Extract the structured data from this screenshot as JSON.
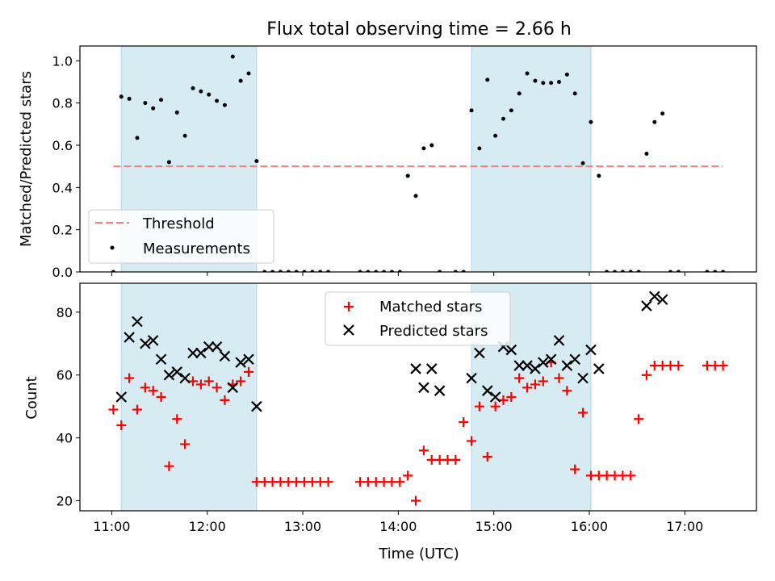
{
  "figure": {
    "title": "Flux total observing time = 2.66 h",
    "xlabel": "Time (UTC)"
  },
  "chart_data": [
    {
      "type": "scatter",
      "ylabel": "Matched/Predicted stars",
      "xlim": [
        "10:40",
        "17:45"
      ],
      "ylim": [
        0,
        1.07
      ],
      "x_ticks": [
        "11:00",
        "12:00",
        "13:00",
        "14:00",
        "15:00",
        "16:00",
        "17:00"
      ],
      "y_ticks": [
        "0.0",
        "0.2",
        "0.4",
        "0.6",
        "0.8",
        "1.0"
      ],
      "shaded_intervals": [
        [
          "11:06",
          "12:31"
        ],
        [
          "14:46",
          "16:01"
        ]
      ],
      "threshold": {
        "name": "Threshold",
        "value": 0.5,
        "x_range": [
          "11:01",
          "17:24"
        ],
        "color": "#f08080",
        "style": "dashed"
      },
      "legend": {
        "placement": "lower-left"
      },
      "series": [
        {
          "name": "Measurements",
          "color": "#000000",
          "x": [
            "11:01",
            "11:06",
            "11:11",
            "11:16",
            "11:21",
            "11:26",
            "11:31",
            "11:36",
            "11:41",
            "11:46",
            "11:51",
            "11:56",
            "12:01",
            "12:06",
            "12:11",
            "12:16",
            "12:21",
            "12:26",
            "12:31",
            "12:36",
            "12:41",
            "12:46",
            "12:51",
            "12:56",
            "13:01",
            "13:06",
            "13:11",
            "13:16",
            "13:36",
            "13:41",
            "13:46",
            "13:51",
            "13:56",
            "14:01",
            "14:06",
            "14:11",
            "14:16",
            "14:21",
            "14:26",
            "14:36",
            "14:41",
            "14:46",
            "14:51",
            "14:56",
            "15:01",
            "15:06",
            "15:11",
            "15:16",
            "15:21",
            "15:26",
            "15:31",
            "15:36",
            "15:41",
            "15:46",
            "15:51",
            "15:56",
            "16:01",
            "16:06",
            "16:11",
            "16:16",
            "16:21",
            "16:26",
            "16:31",
            "16:36",
            "16:41",
            "16:46",
            "16:51",
            "16:56",
            "17:14",
            "17:19",
            "17:24"
          ],
          "y": [
            0.0,
            0.83,
            0.82,
            0.635,
            0.8,
            0.775,
            0.815,
            0.52,
            0.755,
            0.645,
            0.87,
            0.855,
            0.84,
            0.81,
            0.79,
            1.02,
            0.905,
            0.94,
            0.525,
            0.0,
            0.0,
            0.0,
            0.0,
            0.0,
            0.0,
            0.0,
            0.0,
            0.0,
            0.0,
            0.0,
            0.0,
            0.0,
            0.0,
            0.0,
            0.455,
            0.36,
            0.585,
            0.6,
            0.0,
            0.0,
            0.0,
            0.765,
            0.585,
            0.91,
            0.645,
            0.725,
            0.765,
            0.845,
            0.94,
            0.905,
            0.895,
            0.895,
            0.9,
            0.935,
            0.845,
            0.515,
            0.71,
            0.455,
            0.0,
            0.0,
            0.0,
            0.0,
            0.0,
            0.56,
            0.71,
            0.75,
            0.0,
            0.0,
            0.0,
            0.0,
            0.0
          ]
        }
      ]
    },
    {
      "type": "scatter",
      "ylabel": "Count",
      "xlim": [
        "10:40",
        "17:45"
      ],
      "ylim": [
        16.8,
        89.2
      ],
      "x_ticks": [
        "11:00",
        "12:00",
        "13:00",
        "14:00",
        "15:00",
        "16:00",
        "17:00"
      ],
      "y_ticks": [
        "20",
        "40",
        "60",
        "80"
      ],
      "shaded_intervals": [
        [
          "11:06",
          "12:31"
        ],
        [
          "14:46",
          "16:01"
        ]
      ],
      "legend": {
        "placement": "upper-center"
      },
      "series": [
        {
          "name": "Matched stars",
          "marker": "+",
          "color": "#ff0000",
          "x": [
            "11:01",
            "11:06",
            "11:11",
            "11:16",
            "11:21",
            "11:26",
            "11:31",
            "11:36",
            "11:41",
            "11:46",
            "11:51",
            "11:56",
            "12:01",
            "12:06",
            "12:11",
            "12:16",
            "12:21",
            "12:26",
            "12:31",
            "12:36",
            "12:41",
            "12:46",
            "12:51",
            "12:56",
            "13:01",
            "13:06",
            "13:11",
            "13:16",
            "13:36",
            "13:41",
            "13:46",
            "13:51",
            "13:56",
            "14:01",
            "14:06",
            "14:11",
            "14:16",
            "14:21",
            "14:26",
            "14:31",
            "14:36",
            "14:41",
            "14:46",
            "14:51",
            "14:56",
            "15:01",
            "15:06",
            "15:11",
            "15:16",
            "15:21",
            "15:26",
            "15:31",
            "15:36",
            "15:41",
            "15:46",
            "15:51",
            "15:56",
            "16:01",
            "16:06",
            "16:11",
            "16:16",
            "16:21",
            "16:26",
            "16:31",
            "16:36",
            "16:41",
            "16:46",
            "16:51",
            "16:56",
            "17:14",
            "17:19",
            "17:24"
          ],
          "y": [
            49,
            44,
            59,
            49,
            56,
            55,
            53,
            31,
            46,
            38,
            58,
            57,
            58,
            56,
            52,
            57,
            58,
            61,
            26,
            26,
            26,
            26,
            26,
            26,
            26,
            26,
            26,
            26,
            26,
            26,
            26,
            26,
            26,
            26,
            28,
            20,
            36,
            33,
            33,
            33,
            33,
            45,
            39,
            50,
            34,
            50,
            52,
            53,
            59,
            56,
            57,
            58,
            64,
            59,
            55,
            30,
            48,
            28,
            28,
            28,
            28,
            28,
            28,
            46,
            60,
            63,
            63,
            63,
            63,
            63,
            63,
            63
          ]
        },
        {
          "name": "Predicted stars",
          "marker": "x",
          "color": "#000000",
          "x": [
            "11:06",
            "11:11",
            "11:16",
            "11:21",
            "11:26",
            "11:31",
            "11:36",
            "11:41",
            "11:46",
            "11:51",
            "11:56",
            "12:01",
            "12:06",
            "12:11",
            "12:16",
            "12:21",
            "12:26",
            "12:31",
            "14:11",
            "14:16",
            "14:21",
            "14:26",
            "14:46",
            "14:51",
            "14:56",
            "15:01",
            "15:06",
            "15:11",
            "15:16",
            "15:21",
            "15:26",
            "15:31",
            "15:36",
            "15:41",
            "15:46",
            "15:51",
            "15:56",
            "16:01",
            "16:06",
            "16:36",
            "16:41",
            "16:46"
          ],
          "y": [
            53,
            72,
            77,
            70,
            71,
            65,
            60,
            61,
            59,
            67,
            67,
            69,
            69,
            66,
            56,
            64,
            65,
            50,
            62,
            56,
            62,
            55,
            59,
            67,
            55,
            53,
            69,
            68,
            63,
            63,
            62,
            64,
            65,
            71,
            63,
            65,
            59,
            68,
            62,
            82,
            85,
            84
          ]
        }
      ]
    }
  ]
}
